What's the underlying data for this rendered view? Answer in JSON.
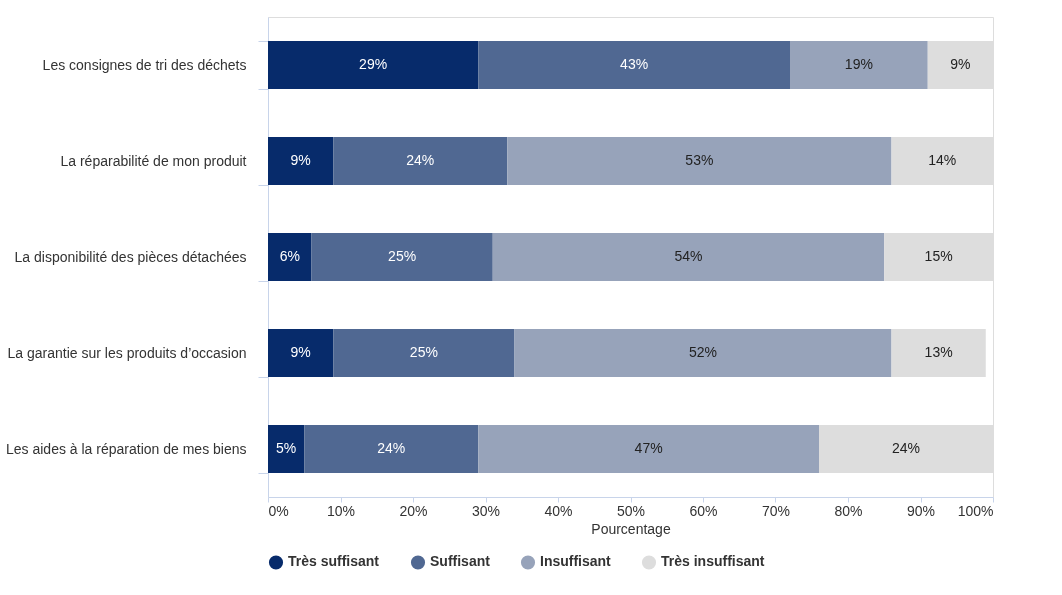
{
  "chart_data": {
    "type": "bar",
    "orientation": "horizontal",
    "stacked": true,
    "xlabel": "Pourcentage",
    "categories": [
      "Les consignes de tri des déchets",
      "La réparabilité de mon produit",
      "La disponibilité des pièces détachées",
      "La garantie sur les produits d’occasion",
      "Les aides à la réparation de mes biens"
    ],
    "series": [
      {
        "name": "Très suffisant",
        "color": "#072b6b",
        "values": [
          29,
          9,
          6,
          9,
          5
        ],
        "value_labels": [
          "29%",
          "9%",
          "6%",
          "9%",
          "5%"
        ]
      },
      {
        "name": "Suffisant",
        "color": "#506892",
        "values": [
          43,
          24,
          25,
          25,
          24
        ],
        "value_labels": [
          "43%",
          "24%",
          "25%",
          "25%",
          "24%"
        ]
      },
      {
        "name": "Insuffisant",
        "color": "#97a3ba",
        "values": [
          19,
          53,
          54,
          52,
          47
        ],
        "value_labels": [
          "19%",
          "53%",
          "54%",
          "52%",
          "47%"
        ]
      },
      {
        "name": "Très insuffisant",
        "color": "#dddddd",
        "values": [
          9,
          14,
          15,
          13,
          24
        ],
        "value_labels": [
          "9%",
          "14%",
          "15%",
          "13%",
          "24%"
        ]
      }
    ],
    "xlim": [
      0,
      100
    ],
    "xticks": [
      {
        "value": 0,
        "label": "0%"
      },
      {
        "value": 10,
        "label": "10%"
      },
      {
        "value": 20,
        "label": "20%"
      },
      {
        "value": 30,
        "label": "30%"
      },
      {
        "value": 40,
        "label": "40%"
      },
      {
        "value": 50,
        "label": "50%"
      },
      {
        "value": 60,
        "label": "60%"
      },
      {
        "value": 70,
        "label": "70%"
      },
      {
        "value": 80,
        "label": "80%"
      },
      {
        "value": 90,
        "label": "90%"
      },
      {
        "value": 100,
        "label": "100%"
      }
    ],
    "grid": false,
    "legend": "bottom"
  }
}
